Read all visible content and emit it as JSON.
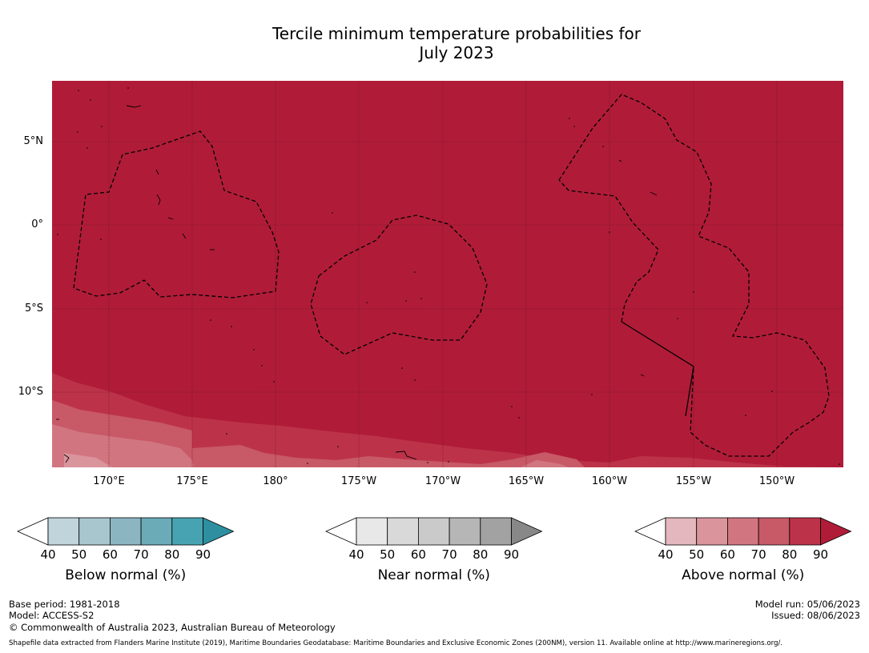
{
  "title_line1": "Tercile minimum temperature probabilities for",
  "title_line2": "July 2023",
  "map": {
    "lat_labels": [
      "5°N",
      "0°",
      "5°S",
      "10°S"
    ],
    "lon_labels": [
      "170°E",
      "175°E",
      "180°",
      "175°W",
      "170°W",
      "165°W",
      "160°W",
      "155°W",
      "150°W"
    ]
  },
  "colorbars": [
    {
      "title": "Below normal (%)",
      "ticks": [
        "40",
        "50",
        "60",
        "70",
        "80",
        "90"
      ],
      "colors": [
        "#ffffff",
        "#bfd4db",
        "#a8c6cd",
        "#8bb5c1",
        "#6aabb7",
        "#47a3b2",
        "#2d8fa0"
      ]
    },
    {
      "title": "Near normal (%)",
      "ticks": [
        "40",
        "50",
        "60",
        "70",
        "80",
        "90"
      ],
      "colors": [
        "#ffffff",
        "#e8e8e8",
        "#d9d9d9",
        "#cacaca",
        "#b6b6b6",
        "#a2a2a2",
        "#888888"
      ]
    },
    {
      "title": "Above normal (%)",
      "ticks": [
        "40",
        "50",
        "60",
        "70",
        "80",
        "90"
      ],
      "colors": [
        "#ffffff",
        "#e3b7bd",
        "#da949c",
        "#d17680",
        "#c85967",
        "#bc3349",
        "#b01c38"
      ]
    }
  ],
  "footer": {
    "base_period": "Base period: 1981-2018",
    "model": "Model: ACCESS-S2",
    "copyright": "© Commonwealth of Australia 2023, Australian Bureau of Meteorology",
    "model_run": "Model run: 05/06/2023",
    "issued": "Issued: 08/06/2023",
    "shapefile": "Shapefile data extracted from Flanders Marine Institute (2019), Maritime Boundaries Geodatabase: Maritime Boundaries and Exclusive Economic Zones (200NM), version 11. Available online at http://www.marineregions.org/."
  }
}
